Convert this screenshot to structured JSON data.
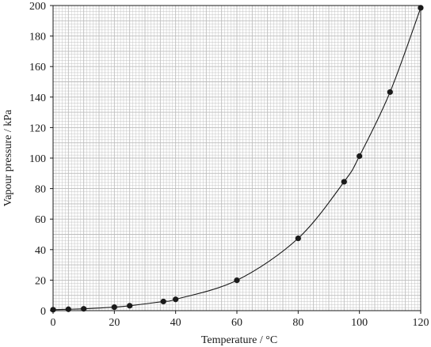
{
  "chart_data": {
    "type": "scatter",
    "title": "",
    "xlabel": "Temperature / °C",
    "ylabel": "Vapour pressure / kPa",
    "xlim": [
      0,
      120
    ],
    "ylim": [
      0,
      200
    ],
    "x_ticks": [
      0,
      20,
      40,
      60,
      80,
      100,
      120
    ],
    "y_ticks": [
      0,
      20,
      40,
      60,
      80,
      100,
      120,
      140,
      160,
      180,
      200
    ],
    "x_tick_labels": [
      "0",
      "20",
      "40",
      "60",
      "80",
      "100",
      "120"
    ],
    "y_tick_labels": [
      "0",
      "20",
      "40",
      "60",
      "80",
      "100",
      "120",
      "140",
      "160",
      "180",
      "200"
    ],
    "grid": true,
    "grid_minor_step": {
      "x": 1,
      "y": 2
    },
    "grid_major_step": {
      "x": 5,
      "y": 10
    },
    "trend_curve": "smooth curve of best fit through points",
    "series": [
      {
        "points": [
          {
            "x": 0,
            "y": 0.6
          },
          {
            "x": 5,
            "y": 0.9
          },
          {
            "x": 10,
            "y": 1.2
          },
          {
            "x": 20,
            "y": 2.3
          },
          {
            "x": 25,
            "y": 3.2
          },
          {
            "x": 36,
            "y": 6.0
          },
          {
            "x": 40,
            "y": 7.4
          },
          {
            "x": 60,
            "y": 19.9
          },
          {
            "x": 80,
            "y": 47.4
          },
          {
            "x": 95,
            "y": 84.5
          },
          {
            "x": 100,
            "y": 101.3
          },
          {
            "x": 110,
            "y": 143.3
          },
          {
            "x": 120,
            "y": 198.5
          }
        ]
      }
    ],
    "colors": {
      "points": "#1a1a1a",
      "curve": "#1a1a1a",
      "grid": "#bdbdbd",
      "axis": "#1a1a1a"
    }
  }
}
